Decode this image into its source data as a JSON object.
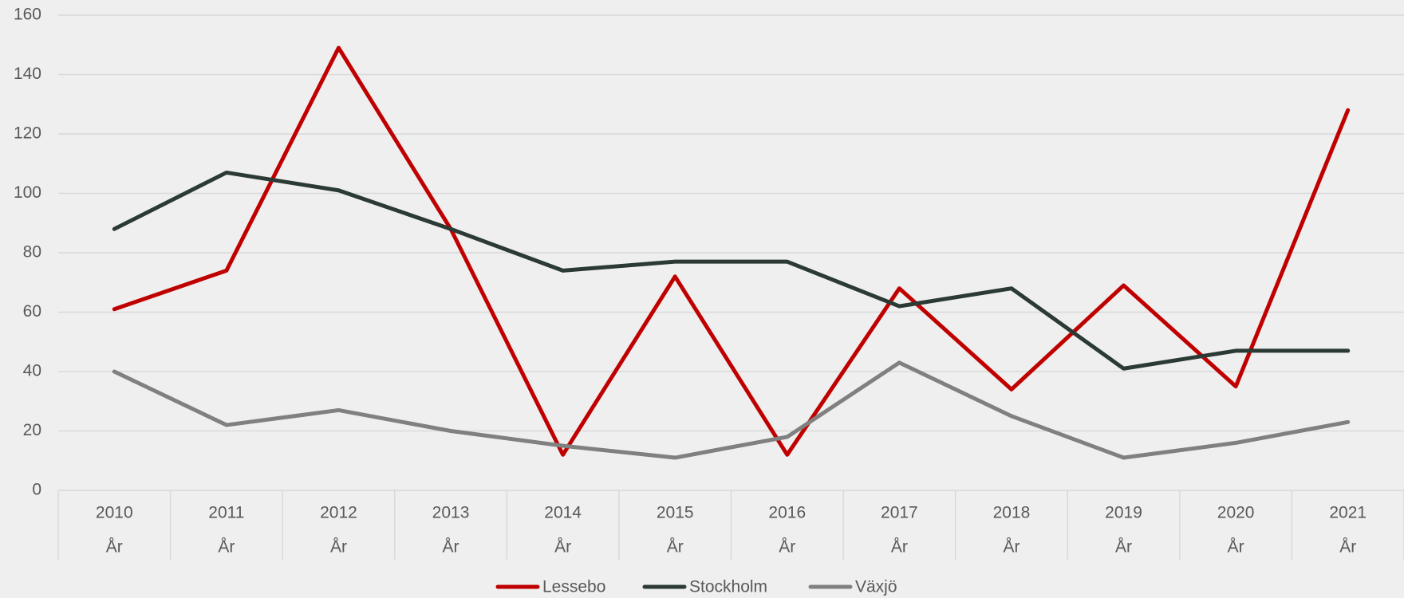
{
  "chart_data": {
    "type": "line",
    "categories": [
      "2010",
      "2011",
      "2012",
      "2013",
      "2014",
      "2015",
      "2016",
      "2017",
      "2018",
      "2019",
      "2020",
      "2021"
    ],
    "category_sublabels": [
      "År",
      "År",
      "År",
      "År",
      "År",
      "År",
      "År",
      "År",
      "År",
      "År",
      "År",
      "År"
    ],
    "series": [
      {
        "name": "Lessebo",
        "color": "#c00000",
        "values": [
          61,
          74,
          149,
          88,
          12,
          72,
          12,
          68,
          34,
          69,
          35,
          128
        ]
      },
      {
        "name": "Stockholm",
        "color": "#2b3a35",
        "values": [
          88,
          107,
          101,
          88,
          74,
          77,
          77,
          62,
          68,
          41,
          47,
          47
        ]
      },
      {
        "name": "Växjö",
        "color": "#808080",
        "values": [
          40,
          22,
          27,
          20,
          15,
          11,
          18,
          43,
          25,
          11,
          16,
          23
        ]
      }
    ],
    "ylim": [
      0,
      160
    ],
    "yticks": [
      0,
      20,
      40,
      60,
      80,
      100,
      120,
      140,
      160
    ],
    "grid": true,
    "legend": "bottom"
  }
}
